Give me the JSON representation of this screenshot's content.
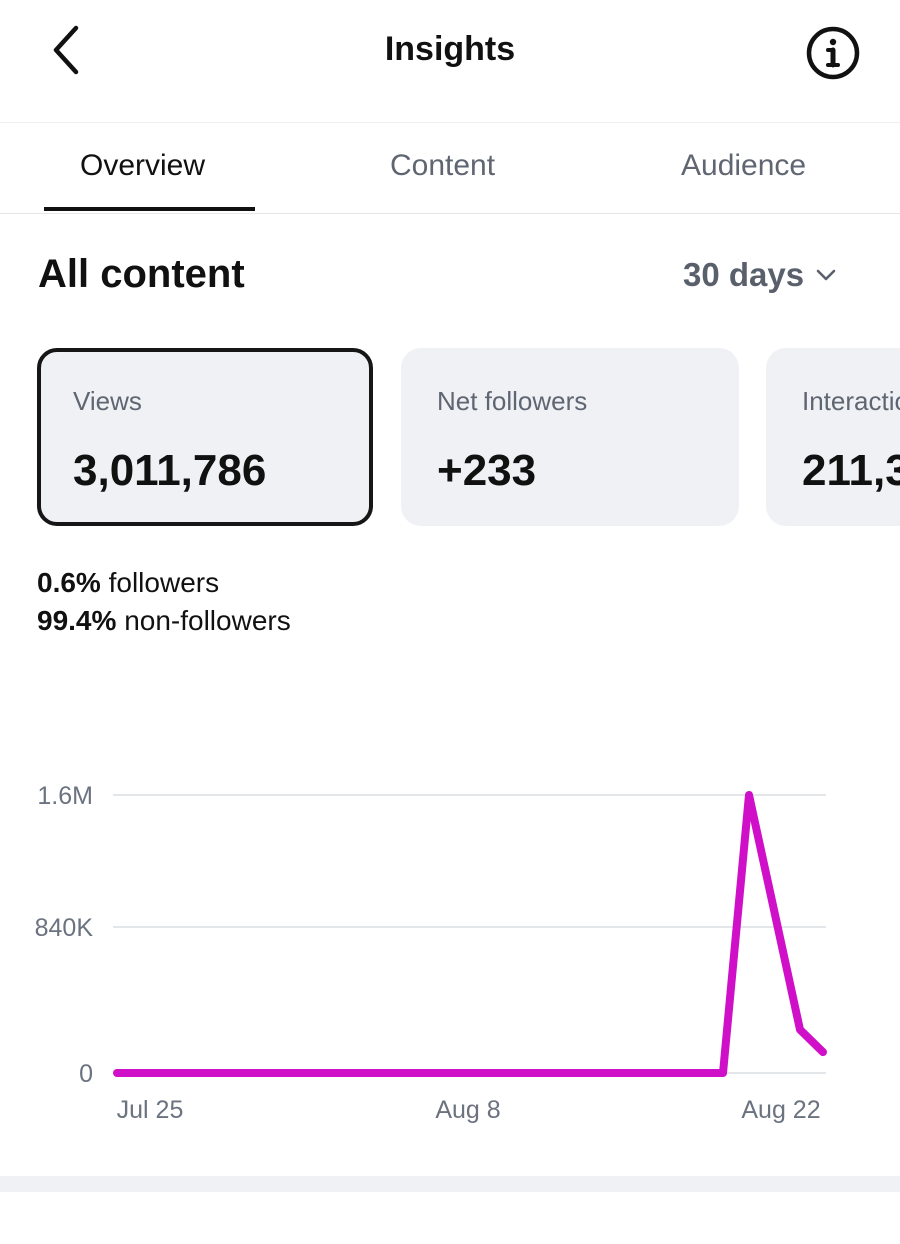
{
  "header": {
    "title": "Insights"
  },
  "icons": {
    "back": "chevron-left-icon",
    "info": "info-circle-icon",
    "dropdown": "chevron-down-icon"
  },
  "tabs": [
    {
      "label": "Overview",
      "active": true
    },
    {
      "label": "Content",
      "active": false
    },
    {
      "label": "Audience",
      "active": false
    }
  ],
  "section": {
    "title": "All content",
    "range": "30 days"
  },
  "cards": [
    {
      "label": "Views",
      "value": "3,011,786",
      "selected": true
    },
    {
      "label": "Net followers",
      "value": "+233",
      "selected": false
    },
    {
      "label": "Interactions",
      "value": "211,3",
      "selected": false
    }
  ],
  "breakdown": {
    "followers_pct": "0.6%",
    "followers_label": "followers",
    "nonfollowers_pct": "99.4%",
    "nonfollowers_label": "non-followers"
  },
  "colors": {
    "line": "#d010c8",
    "card_bg": "#eff1f5",
    "muted_text": "#5f6672"
  },
  "chart_data": {
    "type": "line",
    "y_ticks": [
      {
        "label": "0",
        "value": 0
      },
      {
        "label": "840K",
        "value": 840000
      },
      {
        "label": "1.6M",
        "value": 1600000
      }
    ],
    "x_ticks": [
      {
        "label": "Jul 25",
        "day": 0
      },
      {
        "label": "Aug 8",
        "day": 14
      },
      {
        "label": "Aug 22",
        "day": 28
      }
    ],
    "ylim": [
      0,
      1600000
    ],
    "xlim": [
      0,
      29
    ],
    "grid": true,
    "series": [
      {
        "values": [
          [
            0,
            0
          ],
          [
            1,
            0
          ],
          [
            2,
            0
          ],
          [
            3,
            0
          ],
          [
            4,
            0
          ],
          [
            5,
            0
          ],
          [
            6,
            0
          ],
          [
            7,
            0
          ],
          [
            8,
            0
          ],
          [
            9,
            0
          ],
          [
            10,
            0
          ],
          [
            11,
            0
          ],
          [
            12,
            0
          ],
          [
            13,
            0
          ],
          [
            14,
            0
          ],
          [
            15,
            0
          ],
          [
            16,
            0
          ],
          [
            17,
            0
          ],
          [
            18,
            0
          ],
          [
            19,
            0
          ],
          [
            20,
            0
          ],
          [
            21,
            0
          ],
          [
            22,
            0
          ],
          [
            23,
            0
          ],
          [
            24,
            0
          ],
          [
            25,
            0
          ],
          [
            26,
            0
          ],
          [
            27,
            0
          ],
          [
            28,
            1600000
          ],
          [
            29,
            250000
          ],
          [
            30,
            120000
          ]
        ]
      }
    ]
  }
}
